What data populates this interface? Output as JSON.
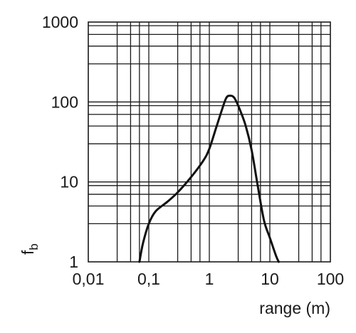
{
  "chart_data": {
    "type": "line",
    "title": "",
    "xlabel": "range (m)",
    "ylabel": "f",
    "ylabel_subscript": "b",
    "x_scale": "log",
    "y_scale": "log",
    "xlim": [
      0.01,
      100
    ],
    "ylim": [
      1,
      1000
    ],
    "grid": true,
    "x_ticks": [
      {
        "value": 0.01,
        "label": "0,01"
      },
      {
        "value": 0.1,
        "label": "0,1"
      },
      {
        "value": 1,
        "label": "1"
      },
      {
        "value": 10,
        "label": "10"
      },
      {
        "value": 100,
        "label": "100"
      }
    ],
    "y_ticks": [
      {
        "value": 1,
        "label": "1"
      },
      {
        "value": 10,
        "label": "10"
      },
      {
        "value": 100,
        "label": "100"
      },
      {
        "value": 1000,
        "label": "1000"
      }
    ],
    "series": [
      {
        "x": [
          0.07,
          0.08,
          0.1,
          0.13,
          0.2,
          0.3,
          0.5,
          0.8,
          1.0,
          1.3,
          1.6,
          1.9,
          2.2,
          2.6,
          3.2,
          4.0,
          5.0,
          6.3,
          8.0,
          10.0,
          12.6,
          14.0
        ],
        "y": [
          1.0,
          1.7,
          3.0,
          4.3,
          5.6,
          7.4,
          11.5,
          18.6,
          26.0,
          48.0,
          78.0,
          112.0,
          120.0,
          112.0,
          80.0,
          50.0,
          25.0,
          9.0,
          3.3,
          2.0,
          1.2,
          1.0
        ]
      }
    ],
    "colors": {
      "curve": "#111111",
      "grid": "#1a1a1a",
      "background": "#ffffff"
    }
  }
}
